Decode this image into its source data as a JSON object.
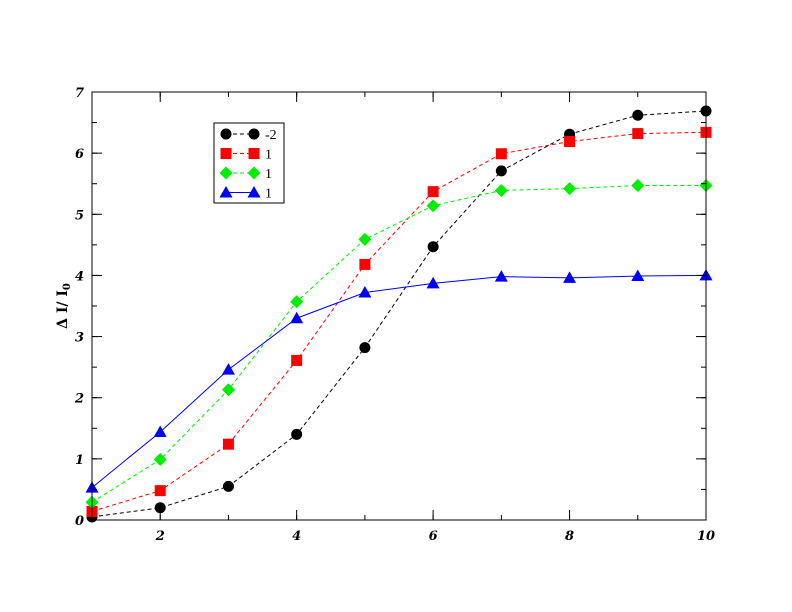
{
  "chart_data": {
    "type": "line",
    "title": "",
    "xlabel": "",
    "ylabel": "Δ I/ I",
    "ylabel_sub": "0",
    "xlim": [
      1,
      10
    ],
    "ylim": [
      0,
      7
    ],
    "x_ticks": [
      2,
      4,
      6,
      8,
      10
    ],
    "y_ticks": [
      0,
      1,
      2,
      3,
      4,
      5,
      6,
      7
    ],
    "x_minor_step": 1,
    "y_minor_step": 0.5,
    "grid": false,
    "legend_position": "top-left",
    "x": [
      1,
      2,
      3,
      4,
      5,
      6,
      7,
      8,
      9,
      10
    ],
    "series": [
      {
        "name": "-2",
        "color": "#000000",
        "marker": "circle",
        "line_style": "dashed",
        "values": [
          0.05,
          0.2,
          0.55,
          1.4,
          2.82,
          4.47,
          5.71,
          6.31,
          6.62,
          6.69
        ]
      },
      {
        "name": "1",
        "color": "#ff0000",
        "marker": "square",
        "line_style": "dashed",
        "values": [
          0.14,
          0.48,
          1.24,
          2.61,
          4.18,
          5.37,
          5.99,
          6.19,
          6.32,
          6.34
        ]
      },
      {
        "name": "1",
        "color": "#00ee00",
        "marker": "diamond",
        "line_style": "dashed",
        "values": [
          0.29,
          0.99,
          2.13,
          3.57,
          4.59,
          5.14,
          5.39,
          5.42,
          5.47,
          5.47
        ]
      },
      {
        "name": "1",
        "color": "#0000ff",
        "marker": "triangle",
        "line_style": "solid",
        "values": [
          0.53,
          1.44,
          2.46,
          3.3,
          3.72,
          3.87,
          3.98,
          3.96,
          3.99,
          4.0
        ]
      }
    ]
  }
}
